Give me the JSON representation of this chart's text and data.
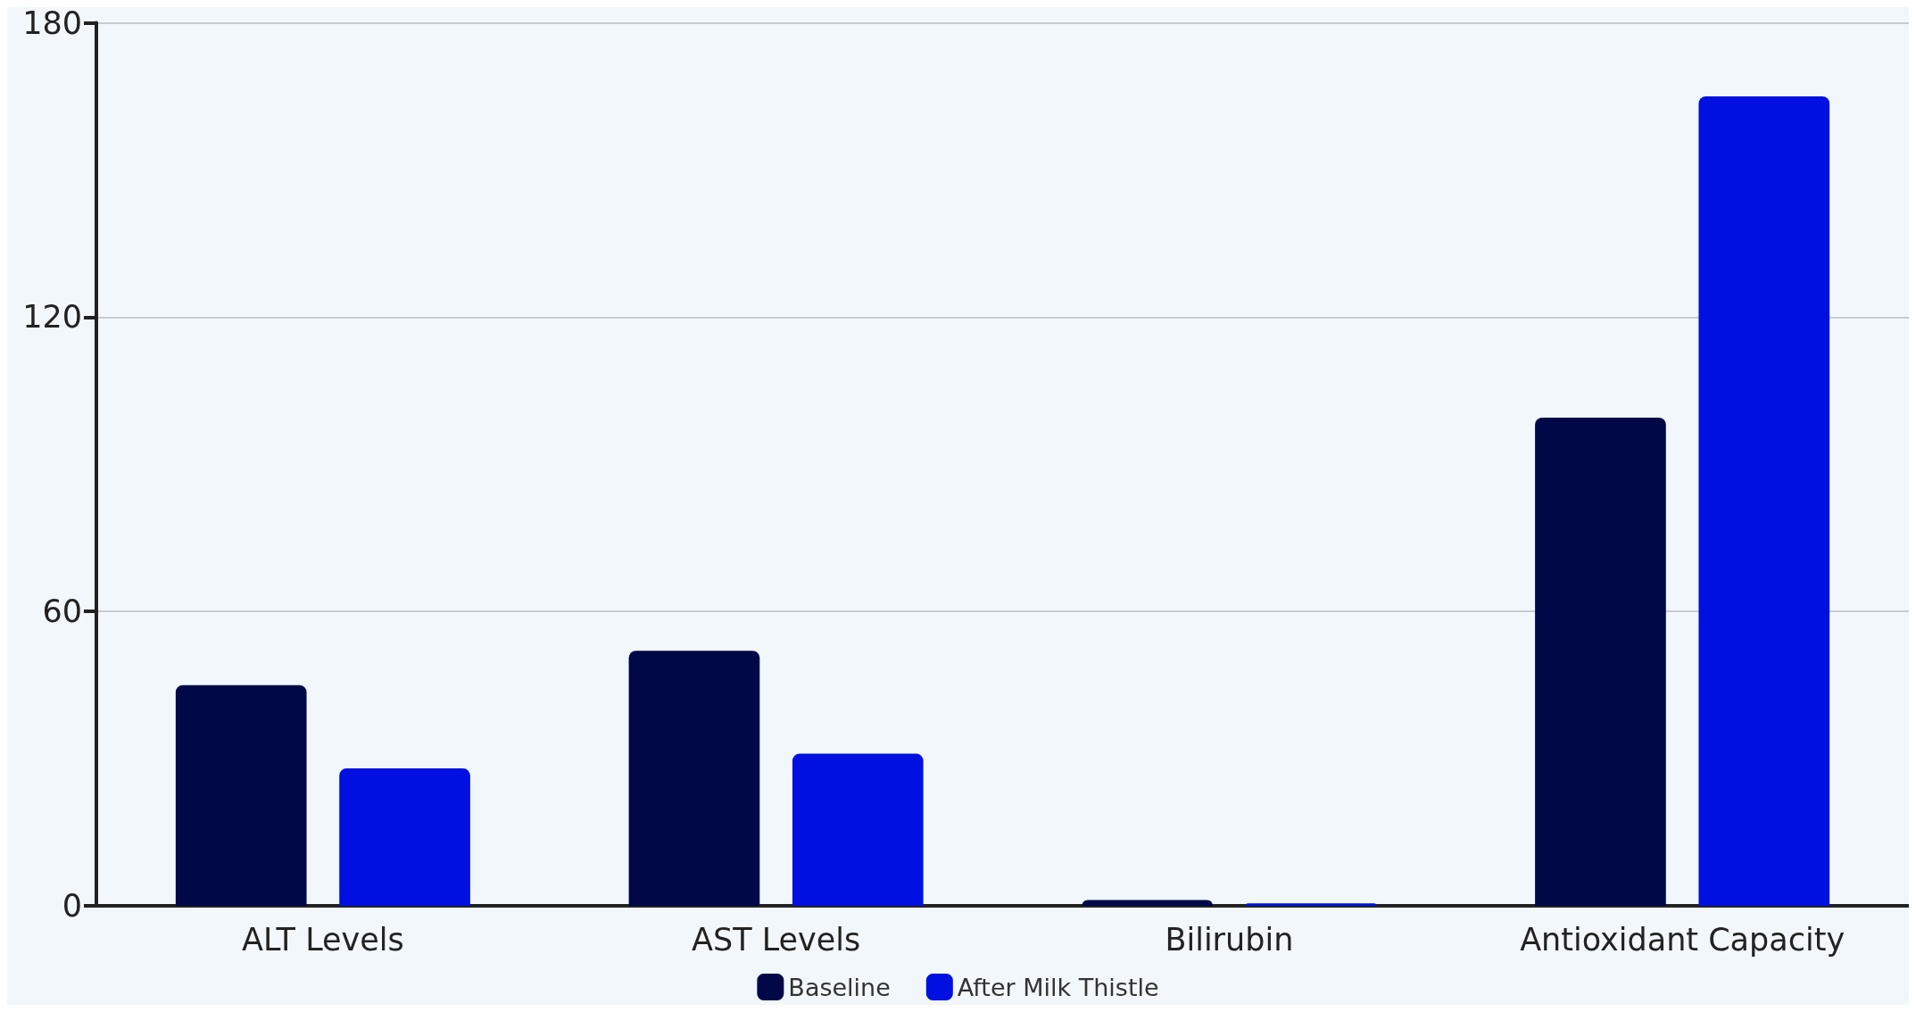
{
  "chart_data": {
    "type": "bar",
    "categories": [
      "ALT Levels",
      "AST Levels",
      "Bilirubin",
      "Antioxidant Capacity"
    ],
    "series": [
      {
        "name": "Baseline",
        "color": "#000848",
        "values": [
          45,
          52,
          1.2,
          99.5
        ]
      },
      {
        "name": "After Milk Thistle",
        "color": "#0010e0",
        "values": [
          28,
          31,
          0.5,
          165
        ]
      }
    ],
    "ylim": [
      0,
      180
    ],
    "yticks": [
      0,
      60,
      120,
      180
    ],
    "grid": "y",
    "legend": "bottom"
  }
}
